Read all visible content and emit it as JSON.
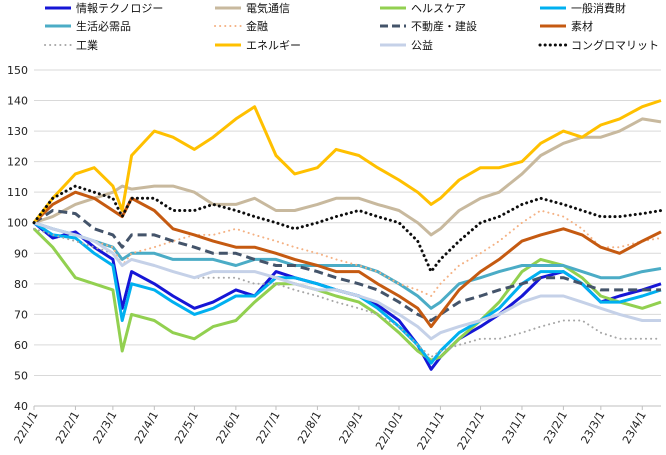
{
  "chart_data": {
    "type": "line",
    "title": "",
    "xlabel": "",
    "ylabel": "",
    "ylim": [
      40,
      150
    ],
    "yticks": [
      40,
      50,
      60,
      70,
      80,
      90,
      100,
      110,
      120,
      130,
      140,
      150
    ],
    "grid": "horizontal",
    "legend": "top",
    "x_tick_labels": [
      "22/1/1",
      "22/2/1",
      "22/3/1",
      "22/4/1",
      "22/5/1",
      "22/6/1",
      "22/7/1",
      "22/8/1",
      "22/9/1",
      "22/10/1",
      "22/11/1",
      "22/12/1",
      "23/1/1",
      "23/2/1",
      "23/3/1",
      "23/4/1"
    ],
    "x": [
      "22/1/1",
      "22/1/15",
      "22/2/1",
      "22/2/15",
      "22/3/1",
      "22/3/8",
      "22/3/15",
      "22/4/1",
      "22/4/15",
      "22/5/1",
      "22/5/15",
      "22/6/1",
      "22/6/15",
      "22/7/1",
      "22/7/15",
      "22/8/1",
      "22/8/15",
      "22/9/1",
      "22/9/15",
      "22/10/1",
      "22/10/15",
      "22/10/25",
      "22/11/1",
      "22/11/15",
      "22/12/1",
      "22/12/15",
      "23/1/1",
      "23/1/15",
      "23/2/1",
      "23/2/15",
      "23/3/1",
      "23/3/15",
      "23/4/1",
      "23/4/15"
    ],
    "series": [
      {
        "name": "情報テクノロジー",
        "color": "#1616d6",
        "dash": "solid",
        "width": 3,
        "values": [
          100,
          95,
          97,
          92,
          88,
          72,
          84,
          80,
          76,
          72,
          74,
          78,
          76,
          84,
          82,
          80,
          78,
          76,
          73,
          68,
          60,
          52,
          56,
          62,
          66,
          70,
          76,
          82,
          84,
          80,
          74,
          76,
          78,
          80
        ]
      },
      {
        "name": "電気通信",
        "color": "#c8b99e",
        "dash": "solid",
        "width": 3,
        "values": [
          100,
          102,
          106,
          108,
          110,
          112,
          111,
          112,
          112,
          110,
          106,
          106,
          108,
          104,
          104,
          106,
          108,
          108,
          106,
          104,
          100,
          96,
          98,
          104,
          108,
          110,
          116,
          122,
          126,
          128,
          128,
          130,
          134,
          133
        ]
      },
      {
        "name": "ヘルスケア",
        "color": "#92d050",
        "dash": "solid",
        "width": 3,
        "values": [
          98,
          92,
          82,
          80,
          78,
          58,
          70,
          68,
          64,
          62,
          66,
          68,
          74,
          80,
          80,
          78,
          76,
          74,
          70,
          64,
          58,
          55,
          56,
          62,
          68,
          74,
          84,
          88,
          86,
          82,
          76,
          74,
          72,
          74
        ]
      },
      {
        "name": "一般消費財",
        "color": "#00b0f0",
        "dash": "solid",
        "width": 3,
        "values": [
          100,
          96,
          95,
          90,
          86,
          68,
          80,
          78,
          74,
          70,
          72,
          76,
          76,
          82,
          82,
          80,
          78,
          76,
          72,
          66,
          60,
          54,
          58,
          64,
          68,
          72,
          80,
          84,
          84,
          80,
          74,
          74,
          76,
          78
        ]
      },
      {
        "name": "生活必需品",
        "color": "#4bacc6",
        "dash": "solid",
        "width": 3,
        "values": [
          100,
          98,
          96,
          94,
          92,
          88,
          90,
          90,
          88,
          88,
          88,
          86,
          88,
          88,
          86,
          86,
          86,
          86,
          84,
          80,
          76,
          72,
          74,
          80,
          82,
          84,
          86,
          86,
          86,
          84,
          82,
          82,
          84,
          85
        ]
      },
      {
        "name": "金融",
        "color": "#f4b183",
        "dash": "dot",
        "width": 2,
        "values": [
          100,
          98,
          96,
          94,
          92,
          86,
          90,
          92,
          94,
          96,
          96,
          98,
          96,
          94,
          92,
          90,
          88,
          86,
          84,
          80,
          78,
          76,
          80,
          86,
          90,
          94,
          100,
          104,
          102,
          98,
          92,
          92,
          94,
          95
        ]
      },
      {
        "name": "不動産・建設",
        "color": "#44546a",
        "dash": "dash",
        "width": 3,
        "values": [
          100,
          104,
          103,
          98,
          96,
          92,
          96,
          96,
          94,
          92,
          90,
          90,
          88,
          86,
          86,
          84,
          82,
          80,
          78,
          74,
          70,
          68,
          70,
          74,
          76,
          78,
          80,
          82,
          82,
          80,
          78,
          78,
          78,
          78
        ]
      },
      {
        "name": "素材",
        "color": "#c55a11",
        "dash": "solid",
        "width": 3,
        "values": [
          100,
          106,
          110,
          108,
          104,
          102,
          108,
          104,
          98,
          96,
          94,
          92,
          92,
          90,
          88,
          86,
          84,
          84,
          80,
          76,
          72,
          66,
          70,
          78,
          84,
          88,
          94,
          96,
          98,
          96,
          92,
          90,
          94,
          97
        ]
      },
      {
        "name": "工業",
        "color": "#a6a6a6",
        "dash": "dot",
        "width": 2,
        "values": [
          98,
          96,
          94,
          92,
          90,
          86,
          88,
          86,
          84,
          82,
          82,
          82,
          80,
          80,
          78,
          76,
          74,
          72,
          70,
          66,
          60,
          56,
          58,
          60,
          62,
          62,
          64,
          66,
          68,
          68,
          64,
          62,
          62,
          62
        ]
      },
      {
        "name": "エネルギー",
        "color": "#ffc000",
        "dash": "solid",
        "width": 3,
        "values": [
          100,
          108,
          116,
          118,
          112,
          104,
          122,
          130,
          128,
          124,
          128,
          134,
          138,
          122,
          116,
          118,
          124,
          122,
          118,
          114,
          110,
          106,
          108,
          114,
          118,
          118,
          120,
          126,
          130,
          128,
          132,
          134,
          138,
          140
        ]
      },
      {
        "name": "公益",
        "color": "#c5d1e8",
        "dash": "solid",
        "width": 3,
        "values": [
          100,
          98,
          96,
          94,
          90,
          86,
          88,
          86,
          84,
          82,
          84,
          84,
          84,
          82,
          80,
          78,
          78,
          76,
          74,
          70,
          66,
          62,
          64,
          66,
          68,
          70,
          74,
          76,
          76,
          74,
          72,
          70,
          68,
          68
        ]
      },
      {
        "name": "コングロマリット",
        "color": "#0d0d0d",
        "dash": "dot",
        "width": 3,
        "values": [
          100,
          108,
          112,
          110,
          108,
          102,
          108,
          108,
          104,
          104,
          106,
          104,
          102,
          100,
          98,
          100,
          102,
          104,
          102,
          100,
          94,
          84,
          88,
          94,
          100,
          102,
          106,
          108,
          106,
          104,
          102,
          102,
          103,
          104
        ]
      }
    ]
  }
}
